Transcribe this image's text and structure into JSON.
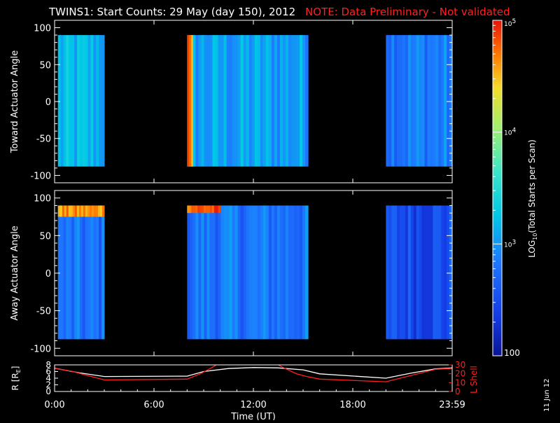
{
  "header": {
    "title": "TWINS1: Start Counts: 29 May (day 150), 2012",
    "note": "NOTE: Data Preliminary - Not validated"
  },
  "footer_date": "11 Jun 12",
  "colors": {
    "background": "#000000",
    "axes": "#ffffff",
    "note": "#ff2020",
    "l_shell": "#ff2020",
    "radius": "#ffffff"
  },
  "chart_data": [
    {
      "type": "heatmap",
      "name": "toward",
      "ylabel": "Toward Actuator Angle",
      "ylim": [
        -110,
        110
      ],
      "yticks": [
        100,
        50,
        0,
        -50,
        -100
      ],
      "xlim": [
        0,
        24
      ],
      "data_y_range": [
        -88,
        90
      ],
      "blocks": [
        {
          "start": 0.2,
          "end": 3.0,
          "log_level": 3.15
        },
        {
          "start": 8.0,
          "end": 15.3,
          "log_level": 3.05
        },
        {
          "start": 20.0,
          "end": 24.0,
          "log_level": 2.85
        }
      ],
      "features": [
        {
          "start": 8.0,
          "end": 8.35,
          "log_level": 4.7
        }
      ]
    },
    {
      "type": "heatmap",
      "name": "away",
      "ylabel": "Away Actuator Angle",
      "ylim": [
        -110,
        110
      ],
      "yticks": [
        100,
        50,
        0,
        -50,
        -100
      ],
      "xlim": [
        0,
        24
      ],
      "data_y_range": [
        -88,
        90
      ],
      "blocks": [
        {
          "start": 0.2,
          "end": 3.0,
          "log_level": 2.75
        },
        {
          "start": 8.0,
          "end": 15.3,
          "log_level": 2.8
        },
        {
          "start": 20.0,
          "end": 24.0,
          "log_level": 2.5
        }
      ],
      "features": [
        {
          "start": 0.2,
          "end": 3.0,
          "y_from": 75,
          "y_to": 90,
          "log_level": 4.6
        },
        {
          "start": 8.0,
          "end": 10.0,
          "y_from": 80,
          "y_to": 90,
          "log_level": 4.8
        }
      ]
    },
    {
      "type": "colorbar",
      "label": "LOG10(Total Starts per Scan)",
      "label_main": "LOG",
      "label_sub": "10",
      "label_rest": "(Total Starts per Scan)",
      "range_log": [
        2,
        5
      ],
      "ticks": [
        {
          "log": 5,
          "text": "10",
          "sup": "5"
        },
        {
          "log": 4,
          "text": "10",
          "sup": "4"
        },
        {
          "log": 3,
          "text": "10",
          "sup": "3"
        },
        {
          "log": 2,
          "text": "100",
          "sup": ""
        }
      ]
    },
    {
      "type": "line",
      "name": "orbit",
      "xlabel": "Time (UT)",
      "xlim": [
        0,
        24
      ],
      "xticks": [
        "0:00",
        "6:00",
        "12:00",
        "18:00",
        "23:59"
      ],
      "ylabel_left": "R [R",
      "ylabel_left_sub": "E",
      "ylabel_left_end": "]",
      "ylim_left": [
        0,
        8
      ],
      "yticks_left": [
        8,
        6,
        4,
        2,
        0
      ],
      "ylabel_right": "L Shell",
      "ylim_right": [
        0,
        30
      ],
      "yticks_right": [
        30,
        20,
        10,
        0
      ],
      "series": [
        {
          "name": "R [RE]",
          "axis": "left",
          "color": "#ffffff",
          "x": [
            0,
            1.5,
            3.0,
            8.0,
            9.0,
            10.5,
            12.0,
            13.5,
            15.0,
            16.0,
            20.0,
            21.5,
            23.0,
            24.0
          ],
          "y": [
            7.0,
            5.6,
            4.5,
            4.6,
            6.0,
            6.9,
            7.2,
            7.1,
            6.5,
            5.3,
            4.0,
            5.5,
            6.8,
            7.1
          ]
        },
        {
          "name": "L Shell",
          "axis": "right",
          "color": "#ff2020",
          "x": [
            0,
            1.0,
            2.0,
            3.0,
            8.0,
            8.8,
            9.5,
            10.0,
            13.2,
            13.8,
            14.6,
            15.2,
            16.0,
            20.0,
            21.5,
            23.0,
            24.0
          ],
          "y": [
            26,
            23,
            18,
            13,
            14,
            20,
            27,
            33,
            33,
            27,
            20,
            17,
            14,
            11,
            18,
            25,
            26
          ]
        }
      ]
    }
  ]
}
